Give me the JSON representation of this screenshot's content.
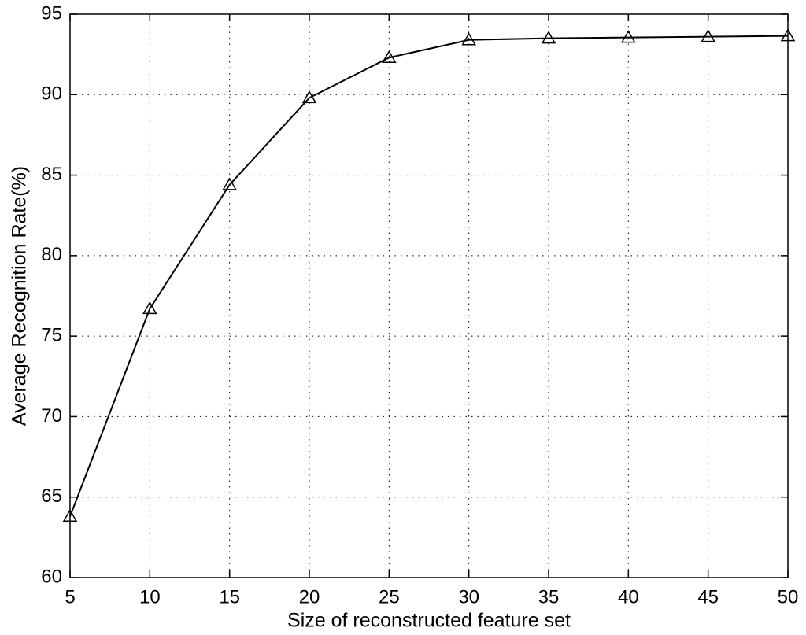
{
  "chart_data": {
    "type": "line",
    "x_label": "Size of reconstructed feature set",
    "y_label": "Average Recognition Rate(%)",
    "x": [
      5,
      10,
      15,
      20,
      25,
      30,
      35,
      40,
      45,
      50
    ],
    "series": [
      {
        "color": "#000000",
        "marker": "triangle",
        "values": [
          63.8,
          76.7,
          84.4,
          89.8,
          92.3,
          93.4,
          93.5,
          93.55,
          93.6,
          93.65
        ]
      }
    ],
    "xlim": [
      5,
      50
    ],
    "xticks": [
      5,
      10,
      15,
      20,
      25,
      30,
      35,
      40,
      45,
      50
    ],
    "ylim": [
      60,
      95
    ],
    "yticks": [
      60,
      65,
      70,
      75,
      80,
      85,
      90,
      95
    ],
    "grid": true
  }
}
